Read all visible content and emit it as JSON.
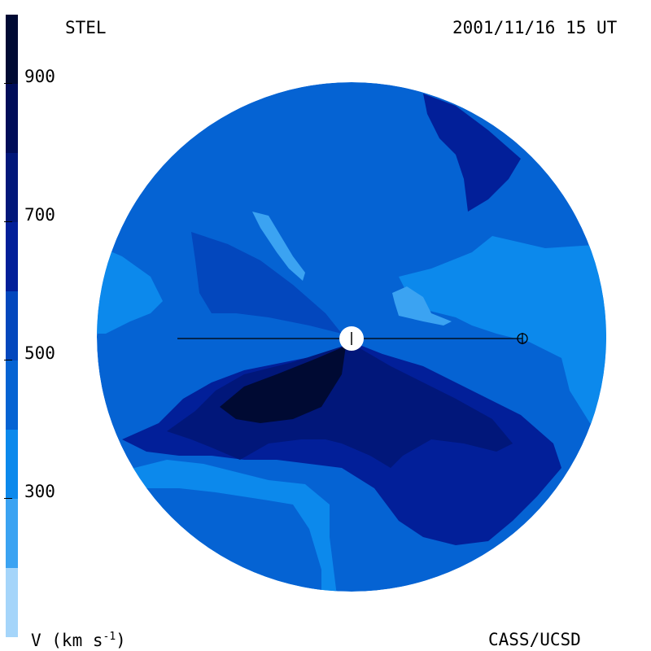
{
  "header": {
    "instrument": "STEL",
    "timestamp": "2001/11/16 15 UT"
  },
  "footer": {
    "units_label": "V (km s",
    "units_exponent": "-1",
    "units_close": ")",
    "credit": "CASS/UCSD"
  },
  "colorbar": {
    "ticks": [
      "900",
      "700",
      "500",
      "300"
    ],
    "colors": [
      "#a5d5fa",
      "#3ba3f2",
      "#0c89ec",
      "#0563d3",
      "#0347bd",
      "#021f99",
      "#01177a",
      "#000d59",
      "#000a33"
    ]
  },
  "chart_data": {
    "type": "heatmap",
    "quantity": "V (km s-1)",
    "color_scale_levels_km_s": [
      200,
      300,
      400,
      500,
      600,
      700,
      800,
      900,
      1000
    ],
    "ticks": [
      300,
      500,
      700,
      900
    ],
    "markers": [
      "sun",
      "earth"
    ]
  }
}
